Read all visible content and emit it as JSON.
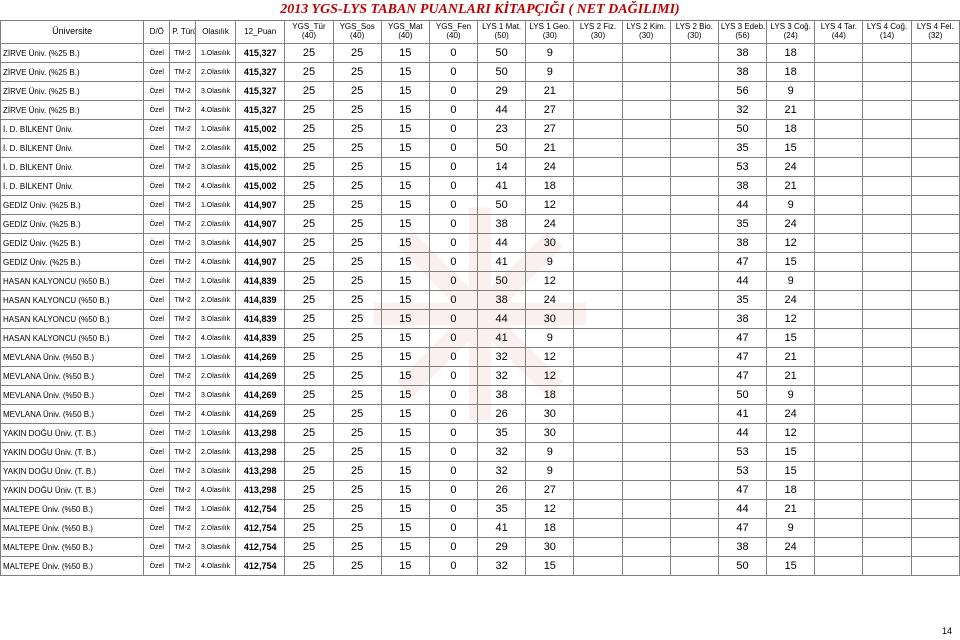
{
  "title": "2013 YGS-LYS TABAN PUANLARI KİTAPÇIĞI ( NET DAĞILIMI)",
  "page_number": "14",
  "columns": [
    {
      "label": "Üniversite",
      "class": "main"
    },
    {
      "label": "D/Ö"
    },
    {
      "label": "P. Türü"
    },
    {
      "label": "Olasılık"
    },
    {
      "label": "12_Puan"
    },
    {
      "label": "YGS_Tür\n(40)"
    },
    {
      "label": "YGS_Sos\n(40)"
    },
    {
      "label": "YGS_Mat\n(40)"
    },
    {
      "label": "YGS_Fen\n(40)"
    },
    {
      "label": "LYS 1 Mat.\n(50)"
    },
    {
      "label": "LYS 1 Geo.\n(30)"
    },
    {
      "label": "LYS 2 Fiz.\n(30)"
    },
    {
      "label": "LYS 2 Kim.\n(30)"
    },
    {
      "label": "LYS 2 Bio.\n(30)"
    },
    {
      "label": "LYS 3 Edeb.\n(56)"
    },
    {
      "label": "LYS 3 Coğ.\n(24)"
    },
    {
      "label": "LYS 4 Tar.\n(44)"
    },
    {
      "label": "LYS 4 Coğ.\n(14)"
    },
    {
      "label": "LYS 4 Fel.\n(32)"
    }
  ],
  "rows": [
    {
      "uni": "ZİRVE Üniv. (%25 B.)",
      "do": "Özel",
      "pt": "TM-2",
      "ola": "1.Olasılık",
      "puan": "415,327",
      "v": [
        "25",
        "25",
        "15",
        "0",
        "50",
        "9",
        "",
        "",
        "",
        "38",
        "18",
        "",
        "",
        ""
      ]
    },
    {
      "uni": "ZİRVE Üniv. (%25 B.)",
      "do": "Özel",
      "pt": "TM-2",
      "ola": "2.Olasılık",
      "puan": "415,327",
      "v": [
        "25",
        "25",
        "15",
        "0",
        "50",
        "9",
        "",
        "",
        "",
        "38",
        "18",
        "",
        "",
        ""
      ]
    },
    {
      "uni": "ZİRVE Üniv. (%25 B.)",
      "do": "Özel",
      "pt": "TM-2",
      "ola": "3.Olasılık",
      "puan": "415,327",
      "v": [
        "25",
        "25",
        "15",
        "0",
        "29",
        "21",
        "",
        "",
        "",
        "56",
        "9",
        "",
        "",
        ""
      ]
    },
    {
      "uni": "ZİRVE Üniv. (%25 B.)",
      "do": "Özel",
      "pt": "TM-2",
      "ola": "4.Olasılık",
      "puan": "415,327",
      "v": [
        "25",
        "25",
        "15",
        "0",
        "44",
        "27",
        "",
        "",
        "",
        "32",
        "21",
        "",
        "",
        ""
      ]
    },
    {
      "uni": "İ. D. BİLKENT Üniv.",
      "do": "Özel",
      "pt": "TM-2",
      "ola": "1.Olasılık",
      "puan": "415,002",
      "v": [
        "25",
        "25",
        "15",
        "0",
        "23",
        "27",
        "",
        "",
        "",
        "50",
        "18",
        "",
        "",
        ""
      ]
    },
    {
      "uni": "İ. D. BİLKENT Üniv.",
      "do": "Özel",
      "pt": "TM-2",
      "ola": "2.Olasılık",
      "puan": "415,002",
      "v": [
        "25",
        "25",
        "15",
        "0",
        "50",
        "21",
        "",
        "",
        "",
        "35",
        "15",
        "",
        "",
        ""
      ]
    },
    {
      "uni": "İ. D. BİLKENT Üniv.",
      "do": "Özel",
      "pt": "TM-2",
      "ola": "3.Olasılık",
      "puan": "415,002",
      "v": [
        "25",
        "25",
        "15",
        "0",
        "14",
        "24",
        "",
        "",
        "",
        "53",
        "24",
        "",
        "",
        ""
      ]
    },
    {
      "uni": "İ. D. BİLKENT Üniv.",
      "do": "Özel",
      "pt": "TM-2",
      "ola": "4.Olasılık",
      "puan": "415,002",
      "v": [
        "25",
        "25",
        "15",
        "0",
        "41",
        "18",
        "",
        "",
        "",
        "38",
        "21",
        "",
        "",
        ""
      ]
    },
    {
      "uni": "GEDİZ Üniv. (%25 B.)",
      "do": "Özel",
      "pt": "TM-2",
      "ola": "1.Olasılık",
      "puan": "414,907",
      "v": [
        "25",
        "25",
        "15",
        "0",
        "50",
        "12",
        "",
        "",
        "",
        "44",
        "9",
        "",
        "",
        ""
      ]
    },
    {
      "uni": "GEDİZ Üniv. (%25 B.)",
      "do": "Özel",
      "pt": "TM-2",
      "ola": "2.Olasılık",
      "puan": "414,907",
      "v": [
        "25",
        "25",
        "15",
        "0",
        "38",
        "24",
        "",
        "",
        "",
        "35",
        "24",
        "",
        "",
        ""
      ]
    },
    {
      "uni": "GEDİZ Üniv. (%25 B.)",
      "do": "Özel",
      "pt": "TM-2",
      "ola": "3.Olasılık",
      "puan": "414,907",
      "v": [
        "25",
        "25",
        "15",
        "0",
        "44",
        "30",
        "",
        "",
        "",
        "38",
        "12",
        "",
        "",
        ""
      ]
    },
    {
      "uni": "GEDİZ Üniv. (%25 B.)",
      "do": "Özel",
      "pt": "TM-2",
      "ola": "4.Olasılık",
      "puan": "414,907",
      "v": [
        "25",
        "25",
        "15",
        "0",
        "41",
        "9",
        "",
        "",
        "",
        "47",
        "15",
        "",
        "",
        ""
      ]
    },
    {
      "uni": "HASAN KALYONCU (%50 B.)",
      "do": "Özel",
      "pt": "TM-2",
      "ola": "1.Olasılık",
      "puan": "414,839",
      "v": [
        "25",
        "25",
        "15",
        "0",
        "50",
        "12",
        "",
        "",
        "",
        "44",
        "9",
        "",
        "",
        ""
      ]
    },
    {
      "uni": "HASAN KALYONCU (%50 B.)",
      "do": "Özel",
      "pt": "TM-2",
      "ola": "2.Olasılık",
      "puan": "414,839",
      "v": [
        "25",
        "25",
        "15",
        "0",
        "38",
        "24",
        "",
        "",
        "",
        "35",
        "24",
        "",
        "",
        ""
      ]
    },
    {
      "uni": "HASAN KALYONCU (%50 B.)",
      "do": "Özel",
      "pt": "TM-2",
      "ola": "3.Olasılık",
      "puan": "414,839",
      "v": [
        "25",
        "25",
        "15",
        "0",
        "44",
        "30",
        "",
        "",
        "",
        "38",
        "12",
        "",
        "",
        ""
      ]
    },
    {
      "uni": "HASAN KALYONCU (%50 B.)",
      "do": "Özel",
      "pt": "TM-2",
      "ola": "4.Olasılık",
      "puan": "414,839",
      "v": [
        "25",
        "25",
        "15",
        "0",
        "41",
        "9",
        "",
        "",
        "",
        "47",
        "15",
        "",
        "",
        ""
      ]
    },
    {
      "uni": "MEVLANA Üniv. (%50 B.)",
      "do": "Özel",
      "pt": "TM-2",
      "ola": "1.Olasılık",
      "puan": "414,269",
      "v": [
        "25",
        "25",
        "15",
        "0",
        "32",
        "12",
        "",
        "",
        "",
        "47",
        "21",
        "",
        "",
        ""
      ]
    },
    {
      "uni": "MEVLANA Üniv. (%50 B.)",
      "do": "Özel",
      "pt": "TM-2",
      "ola": "2.Olasılık",
      "puan": "414,269",
      "v": [
        "25",
        "25",
        "15",
        "0",
        "32",
        "12",
        "",
        "",
        "",
        "47",
        "21",
        "",
        "",
        ""
      ]
    },
    {
      "uni": "MEVLANA Üniv. (%50 B.)",
      "do": "Özel",
      "pt": "TM-2",
      "ola": "3.Olasılık",
      "puan": "414,269",
      "v": [
        "25",
        "25",
        "15",
        "0",
        "38",
        "18",
        "",
        "",
        "",
        "50",
        "9",
        "",
        "",
        ""
      ]
    },
    {
      "uni": "MEVLANA Üniv. (%50 B.)",
      "do": "Özel",
      "pt": "TM-2",
      "ola": "4.Olasılık",
      "puan": "414,269",
      "v": [
        "25",
        "25",
        "15",
        "0",
        "26",
        "30",
        "",
        "",
        "",
        "41",
        "24",
        "",
        "",
        ""
      ]
    },
    {
      "uni": "YAKIN DOĞU Üniv. (T. B.)",
      "do": "Özel",
      "pt": "TM-2",
      "ola": "1.Olasılık",
      "puan": "413,298",
      "v": [
        "25",
        "25",
        "15",
        "0",
        "35",
        "30",
        "",
        "",
        "",
        "44",
        "12",
        "",
        "",
        ""
      ]
    },
    {
      "uni": "YAKIN DOĞU Üniv. (T. B.)",
      "do": "Özel",
      "pt": "TM-2",
      "ola": "2.Olasılık",
      "puan": "413,298",
      "v": [
        "25",
        "25",
        "15",
        "0",
        "32",
        "9",
        "",
        "",
        "",
        "53",
        "15",
        "",
        "",
        ""
      ]
    },
    {
      "uni": "YAKIN DOĞU Üniv. (T. B.)",
      "do": "Özel",
      "pt": "TM-2",
      "ola": "3.Olasılık",
      "puan": "413,298",
      "v": [
        "25",
        "25",
        "15",
        "0",
        "32",
        "9",
        "",
        "",
        "",
        "53",
        "15",
        "",
        "",
        ""
      ]
    },
    {
      "uni": "YAKIN DOĞU Üniv. (T. B.)",
      "do": "Özel",
      "pt": "TM-2",
      "ola": "4.Olasılık",
      "puan": "413,298",
      "v": [
        "25",
        "25",
        "15",
        "0",
        "26",
        "27",
        "",
        "",
        "",
        "47",
        "18",
        "",
        "",
        ""
      ]
    },
    {
      "uni": "MALTEPE Üniv. (%50 B.)",
      "do": "Özel",
      "pt": "TM-2",
      "ola": "1.Olasılık",
      "puan": "412,754",
      "v": [
        "25",
        "25",
        "15",
        "0",
        "35",
        "12",
        "",
        "",
        "",
        "44",
        "21",
        "",
        "",
        ""
      ]
    },
    {
      "uni": "MALTEPE Üniv. (%50 B.)",
      "do": "Özel",
      "pt": "TM-2",
      "ola": "2.Olasılık",
      "puan": "412,754",
      "v": [
        "25",
        "25",
        "15",
        "0",
        "41",
        "18",
        "",
        "",
        "",
        "47",
        "9",
        "",
        "",
        ""
      ]
    },
    {
      "uni": "MALTEPE Üniv. (%50 B.)",
      "do": "Özel",
      "pt": "TM-2",
      "ola": "3.Olasılık",
      "puan": "412,754",
      "v": [
        "25",
        "25",
        "15",
        "0",
        "29",
        "30",
        "",
        "",
        "",
        "38",
        "24",
        "",
        "",
        ""
      ]
    },
    {
      "uni": "MALTEPE Üniv. (%50 B.)",
      "do": "Özel",
      "pt": "TM-2",
      "ola": "4.Olasılık",
      "puan": "412,754",
      "v": [
        "25",
        "25",
        "15",
        "0",
        "32",
        "15",
        "",
        "",
        "",
        "50",
        "15",
        "",
        "",
        ""
      ]
    }
  ]
}
